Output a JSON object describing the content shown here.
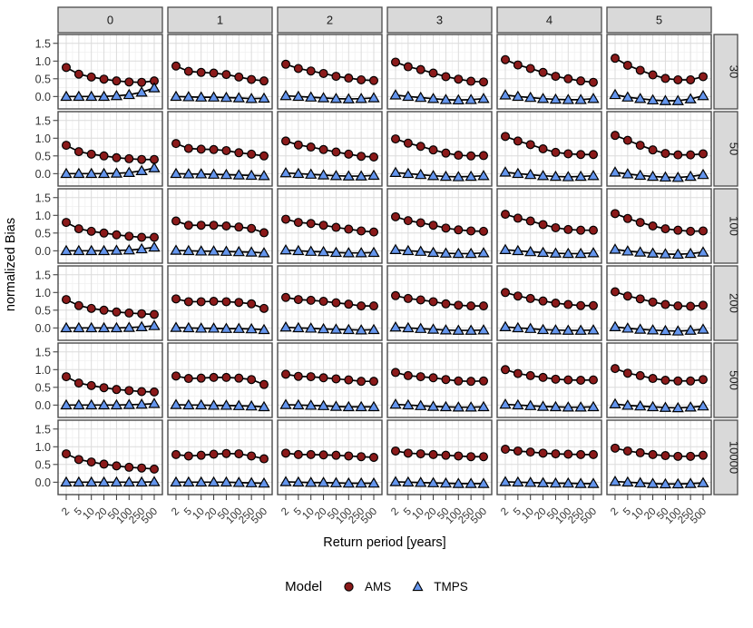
{
  "chart_data": {
    "type": "line",
    "xlabel": "Return period [years]",
    "ylabel": "normalized Bias",
    "x_ticks": [
      {
        "label": "2",
        "value": 2
      },
      {
        "label": "5",
        "value": 5
      },
      {
        "label": "10",
        "value": 10
      },
      {
        "label": "20",
        "value": 20
      },
      {
        "label": "50",
        "value": 50
      },
      {
        "label": "100",
        "value": 100
      },
      {
        "label": "250",
        "value": 250
      },
      {
        "label": "500",
        "value": 500
      }
    ],
    "y_ticks": [
      {
        "label": "0.0",
        "value": 0.0
      },
      {
        "label": "0.5",
        "value": 0.5
      },
      {
        "label": "1.0",
        "value": 1.0
      },
      {
        "label": "1.5",
        "value": 1.5
      }
    ],
    "ylim": [
      -0.35,
      1.75
    ],
    "grid": "major+minor",
    "legend": {
      "title": "Model",
      "position": "bottom"
    },
    "series": [
      {
        "name": "AMS",
        "marker": "circle",
        "color": "#8B1A1A"
      },
      {
        "name": "TMPS",
        "marker": "triangle",
        "color": "#6495ED"
      }
    ],
    "col_facets": [
      "0",
      "1",
      "2",
      "3",
      "4",
      "5"
    ],
    "facet_rows": [
      {
        "label": "30",
        "panels": [
          {
            "AMS": [
              0.82,
              0.63,
              0.55,
              0.49,
              0.44,
              0.41,
              0.4,
              0.44
            ],
            "TMPS": [
              0.0,
              0.0,
              0.0,
              0.0,
              0.02,
              0.05,
              0.12,
              0.24
            ]
          },
          {
            "AMS": [
              0.86,
              0.71,
              0.68,
              0.66,
              0.62,
              0.55,
              0.48,
              0.44
            ],
            "TMPS": [
              0.0,
              -0.01,
              -0.02,
              -0.02,
              -0.03,
              -0.04,
              -0.06,
              -0.05
            ]
          },
          {
            "AMS": [
              0.91,
              0.79,
              0.72,
              0.65,
              0.57,
              0.52,
              0.47,
              0.45
            ],
            "TMPS": [
              0.02,
              0.0,
              -0.02,
              -0.04,
              -0.06,
              -0.07,
              -0.06,
              -0.04
            ]
          },
          {
            "AMS": [
              0.97,
              0.84,
              0.76,
              0.66,
              0.56,
              0.49,
              0.43,
              0.41
            ],
            "TMPS": [
              0.04,
              0.0,
              -0.03,
              -0.06,
              -0.09,
              -0.1,
              -0.09,
              -0.06
            ]
          },
          {
            "AMS": [
              1.04,
              0.89,
              0.79,
              0.68,
              0.57,
              0.5,
              0.44,
              0.4
            ],
            "TMPS": [
              0.04,
              0.0,
              -0.03,
              -0.06,
              -0.08,
              -0.09,
              -0.09,
              -0.06
            ]
          },
          {
            "AMS": [
              1.08,
              0.88,
              0.74,
              0.61,
              0.51,
              0.47,
              0.47,
              0.56
            ],
            "TMPS": [
              0.05,
              -0.02,
              -0.06,
              -0.1,
              -0.12,
              -0.12,
              -0.07,
              0.02
            ]
          }
        ]
      },
      {
        "label": "50",
        "panels": [
          {
            "AMS": [
              0.8,
              0.62,
              0.55,
              0.5,
              0.45,
              0.42,
              0.4,
              0.4
            ],
            "TMPS": [
              0.0,
              0.0,
              0.0,
              0.0,
              0.01,
              0.03,
              0.08,
              0.16
            ]
          },
          {
            "AMS": [
              0.85,
              0.71,
              0.69,
              0.68,
              0.65,
              0.59,
              0.55,
              0.5
            ],
            "TMPS": [
              0.0,
              -0.01,
              -0.01,
              -0.02,
              -0.03,
              -0.04,
              -0.05,
              -0.06
            ]
          },
          {
            "AMS": [
              0.92,
              0.81,
              0.75,
              0.68,
              0.61,
              0.55,
              0.49,
              0.47
            ],
            "TMPS": [
              0.02,
              0.0,
              -0.02,
              -0.04,
              -0.06,
              -0.07,
              -0.07,
              -0.05
            ]
          },
          {
            "AMS": [
              0.98,
              0.86,
              0.77,
              0.67,
              0.58,
              0.52,
              0.5,
              0.51
            ],
            "TMPS": [
              0.03,
              0.0,
              -0.03,
              -0.06,
              -0.08,
              -0.09,
              -0.08,
              -0.06
            ]
          },
          {
            "AMS": [
              1.05,
              0.92,
              0.82,
              0.7,
              0.6,
              0.56,
              0.54,
              0.54
            ],
            "TMPS": [
              0.04,
              0.0,
              -0.03,
              -0.06,
              -0.08,
              -0.09,
              -0.08,
              -0.06
            ]
          },
          {
            "AMS": [
              1.08,
              0.94,
              0.8,
              0.67,
              0.57,
              0.53,
              0.53,
              0.56
            ],
            "TMPS": [
              0.04,
              -0.01,
              -0.05,
              -0.08,
              -0.1,
              -0.11,
              -0.08,
              -0.03
            ]
          }
        ]
      },
      {
        "label": "100",
        "panels": [
          {
            "AMS": [
              0.8,
              0.62,
              0.55,
              0.5,
              0.45,
              0.41,
              0.38,
              0.38
            ],
            "TMPS": [
              0.0,
              0.0,
              0.0,
              0.0,
              0.01,
              0.02,
              0.05,
              0.1
            ]
          },
          {
            "AMS": [
              0.84,
              0.72,
              0.72,
              0.72,
              0.7,
              0.67,
              0.63,
              0.51
            ],
            "TMPS": [
              0.01,
              0.0,
              -0.01,
              -0.01,
              -0.02,
              -0.03,
              -0.04,
              -0.06
            ]
          },
          {
            "AMS": [
              0.89,
              0.8,
              0.77,
              0.72,
              0.66,
              0.61,
              0.56,
              0.53
            ],
            "TMPS": [
              0.02,
              0.0,
              -0.02,
              -0.03,
              -0.05,
              -0.06,
              -0.06,
              -0.05
            ]
          },
          {
            "AMS": [
              0.96,
              0.85,
              0.79,
              0.72,
              0.64,
              0.59,
              0.56,
              0.55
            ],
            "TMPS": [
              0.03,
              0.0,
              -0.02,
              -0.05,
              -0.07,
              -0.08,
              -0.08,
              -0.06
            ]
          },
          {
            "AMS": [
              1.03,
              0.92,
              0.84,
              0.74,
              0.65,
              0.6,
              0.58,
              0.58
            ],
            "TMPS": [
              0.03,
              0.0,
              -0.03,
              -0.05,
              -0.07,
              -0.08,
              -0.08,
              -0.06
            ]
          },
          {
            "AMS": [
              1.05,
              0.91,
              0.8,
              0.7,
              0.62,
              0.58,
              0.55,
              0.56
            ],
            "TMPS": [
              0.04,
              -0.01,
              -0.04,
              -0.07,
              -0.09,
              -0.1,
              -0.08,
              -0.04
            ]
          }
        ]
      },
      {
        "label": "200",
        "panels": [
          {
            "AMS": [
              0.8,
              0.63,
              0.55,
              0.5,
              0.45,
              0.42,
              0.4,
              0.38
            ],
            "TMPS": [
              0.0,
              0.0,
              0.0,
              0.0,
              0.0,
              0.01,
              0.03,
              0.06
            ]
          },
          {
            "AMS": [
              0.82,
              0.74,
              0.74,
              0.75,
              0.74,
              0.72,
              0.68,
              0.55
            ],
            "TMPS": [
              0.01,
              0.0,
              -0.01,
              -0.01,
              -0.02,
              -0.02,
              -0.03,
              -0.05
            ]
          },
          {
            "AMS": [
              0.86,
              0.8,
              0.78,
              0.75,
              0.71,
              0.67,
              0.62,
              0.62
            ],
            "TMPS": [
              0.02,
              0.0,
              -0.01,
              -0.03,
              -0.04,
              -0.05,
              -0.06,
              -0.05
            ]
          },
          {
            "AMS": [
              0.91,
              0.83,
              0.79,
              0.74,
              0.68,
              0.64,
              0.62,
              0.62
            ],
            "TMPS": [
              0.02,
              0.0,
              -0.02,
              -0.04,
              -0.06,
              -0.07,
              -0.07,
              -0.06
            ]
          },
          {
            "AMS": [
              1.0,
              0.9,
              0.83,
              0.76,
              0.7,
              0.66,
              0.63,
              0.63
            ],
            "TMPS": [
              0.03,
              0.0,
              -0.02,
              -0.05,
              -0.06,
              -0.07,
              -0.07,
              -0.06
            ]
          },
          {
            "AMS": [
              1.02,
              0.9,
              0.82,
              0.73,
              0.66,
              0.62,
              0.61,
              0.64
            ],
            "TMPS": [
              0.03,
              -0.01,
              -0.04,
              -0.06,
              -0.08,
              -0.09,
              -0.07,
              -0.04
            ]
          }
        ]
      },
      {
        "label": "500",
        "panels": [
          {
            "AMS": [
              0.8,
              0.62,
              0.55,
              0.49,
              0.44,
              0.41,
              0.38,
              0.37
            ],
            "TMPS": [
              0.0,
              0.0,
              0.0,
              0.0,
              0.0,
              0.01,
              0.02,
              0.04
            ]
          },
          {
            "AMS": [
              0.82,
              0.75,
              0.76,
              0.78,
              0.78,
              0.76,
              0.72,
              0.58
            ],
            "TMPS": [
              0.01,
              0.0,
              0.0,
              -0.01,
              -0.01,
              -0.02,
              -0.03,
              -0.05
            ]
          },
          {
            "AMS": [
              0.87,
              0.81,
              0.8,
              0.77,
              0.74,
              0.71,
              0.67,
              0.67
            ],
            "TMPS": [
              0.01,
              0.0,
              -0.01,
              -0.02,
              -0.04,
              -0.05,
              -0.05,
              -0.05
            ]
          },
          {
            "AMS": [
              0.92,
              0.83,
              0.8,
              0.77,
              0.72,
              0.68,
              0.67,
              0.68
            ],
            "TMPS": [
              0.02,
              0.0,
              -0.02,
              -0.04,
              -0.05,
              -0.06,
              -0.06,
              -0.05
            ]
          },
          {
            "AMS": [
              1.0,
              0.89,
              0.83,
              0.78,
              0.73,
              0.71,
              0.7,
              0.71
            ],
            "TMPS": [
              0.02,
              0.0,
              -0.02,
              -0.04,
              -0.05,
              -0.06,
              -0.06,
              -0.05
            ]
          },
          {
            "AMS": [
              1.03,
              0.9,
              0.83,
              0.75,
              0.7,
              0.68,
              0.68,
              0.72
            ],
            "TMPS": [
              0.03,
              -0.01,
              -0.03,
              -0.05,
              -0.07,
              -0.08,
              -0.06,
              -0.03
            ]
          }
        ]
      },
      {
        "label": "10000",
        "panels": [
          {
            "AMS": [
              0.8,
              0.64,
              0.57,
              0.51,
              0.46,
              0.42,
              0.4,
              0.37
            ],
            "TMPS": [
              0.0,
              0.0,
              0.0,
              0.0,
              0.0,
              0.0,
              0.0,
              0.01
            ]
          },
          {
            "AMS": [
              0.78,
              0.74,
              0.76,
              0.79,
              0.81,
              0.8,
              0.74,
              0.66
            ],
            "TMPS": [
              0.0,
              0.0,
              0.0,
              0.0,
              0.0,
              -0.01,
              -0.02,
              -0.03
            ]
          },
          {
            "AMS": [
              0.82,
              0.78,
              0.78,
              0.77,
              0.76,
              0.74,
              0.72,
              0.7
            ],
            "TMPS": [
              0.01,
              0.0,
              -0.01,
              -0.01,
              -0.02,
              -0.03,
              -0.03,
              -0.03
            ]
          },
          {
            "AMS": [
              0.88,
              0.82,
              0.8,
              0.78,
              0.76,
              0.74,
              0.72,
              0.72
            ],
            "TMPS": [
              0.01,
              0.0,
              -0.01,
              -0.02,
              -0.03,
              -0.04,
              -0.04,
              -0.04
            ]
          },
          {
            "AMS": [
              0.93,
              0.88,
              0.85,
              0.82,
              0.8,
              0.79,
              0.78,
              0.78
            ],
            "TMPS": [
              0.01,
              0.0,
              -0.01,
              -0.02,
              -0.03,
              -0.03,
              -0.04,
              -0.04
            ]
          },
          {
            "AMS": [
              0.96,
              0.88,
              0.83,
              0.78,
              0.75,
              0.73,
              0.73,
              0.76
            ],
            "TMPS": [
              0.02,
              0.0,
              -0.02,
              -0.04,
              -0.05,
              -0.05,
              -0.04,
              -0.02
            ]
          }
        ]
      }
    ]
  }
}
